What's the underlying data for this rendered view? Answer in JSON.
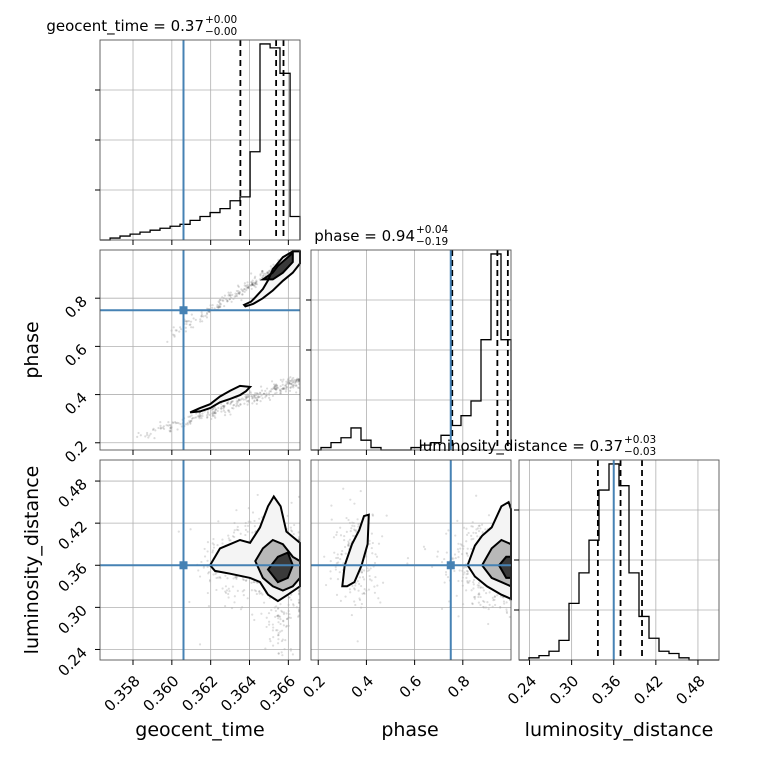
{
  "chart_data": {
    "type": "corner",
    "parameters": [
      "geocent_time",
      "phase",
      "luminosity_distance"
    ],
    "truths": {
      "geocent_time": 0.3606,
      "phase": 0.75,
      "luminosity_distance": 0.36
    },
    "colors": {
      "truth": "#4682b4",
      "hist": "#000000",
      "grid": "#b0b0b0"
    },
    "titles": [
      {
        "param": "geocent_time",
        "main": "geocent_time = 0.37",
        "sup": "+0.00",
        "sub": "−0.00"
      },
      {
        "param": "phase",
        "main": "phase = 0.94",
        "sup": "+0.04",
        "sub": "−0.19"
      },
      {
        "param": "luminosity_distance",
        "main": "luminosity_distance = 0.37",
        "sup": "+0.03",
        "sub": "−0.03"
      }
    ],
    "axes": {
      "geocent_time": {
        "range": [
          0.3563,
          0.3666
        ],
        "ticks": [
          0.358,
          0.36,
          0.362,
          0.364,
          0.366
        ],
        "tick_labels": [
          "0.358",
          "0.360",
          "0.362",
          "0.364",
          "0.366"
        ]
      },
      "phase": {
        "range": [
          0.17,
          1.0
        ],
        "ticks": [
          0.2,
          0.4,
          0.6,
          0.8
        ],
        "tick_labels": [
          "0.2",
          "0.4",
          "0.6",
          "0.8"
        ]
      },
      "luminosity_distance": {
        "range": [
          0.225,
          0.51
        ],
        "ticks": [
          0.24,
          0.3,
          0.36,
          0.42,
          0.48
        ],
        "tick_labels": [
          "0.24",
          "0.30",
          "0.36",
          "0.42",
          "0.48"
        ]
      }
    },
    "histograms": {
      "geocent_time": {
        "bin_edges": [
          0.3563,
          0.35682,
          0.35733,
          0.35785,
          0.35836,
          0.35888,
          0.35939,
          0.35991,
          0.36042,
          0.36094,
          0.36145,
          0.36197,
          0.36248,
          0.363,
          0.36351,
          0.36403,
          0.36454,
          0.36506,
          0.36557,
          0.36609,
          0.3666
        ],
        "counts": [
          0,
          1,
          2,
          3,
          4,
          5,
          6,
          7,
          8,
          10,
          12,
          14,
          16,
          20,
          22,
          45,
          100,
          98,
          85,
          12
        ],
        "quantiles": [
          0.36353,
          0.36537,
          0.36575
        ]
      },
      "phase": {
        "bin_edges": [
          0.17,
          0.2115,
          0.253,
          0.2945,
          0.336,
          0.3775,
          0.419,
          0.4605,
          0.502,
          0.5435,
          0.585,
          0.6265,
          0.668,
          0.7095,
          0.751,
          0.7925,
          0.834,
          0.8755,
          0.917,
          0.9585,
          1.0
        ],
        "counts": [
          0,
          1,
          3,
          5,
          9,
          4,
          1,
          0,
          0,
          0,
          1,
          2,
          3,
          6,
          10,
          14,
          20,
          45,
          80,
          45
        ],
        "quantiles": [
          0.7562,
          0.9434,
          0.9869
        ]
      },
      "luminosity_distance": {
        "bin_edges": [
          0.225,
          0.23925,
          0.2535,
          0.26775,
          0.282,
          0.29625,
          0.3105,
          0.32475,
          0.339,
          0.35325,
          0.3675,
          0.38175,
          0.396,
          0.41025,
          0.4245,
          0.43875,
          0.453,
          0.46725,
          0.4815,
          0.49575,
          0.51
        ],
        "counts": [
          0,
          1,
          2,
          4,
          9,
          26,
          40,
          55,
          78,
          90,
          80,
          40,
          20,
          10,
          4,
          3,
          1,
          0,
          0,
          0
        ],
        "quantiles": [
          0.3374,
          0.3697,
          0.4003
        ]
      }
    },
    "contours_2d": {
      "phase_vs_geocent_time": [
        {
          "level": "outer",
          "points": [
            [
              0.36372,
              0.772
            ],
            [
              0.36408,
              0.786
            ],
            [
              0.36433,
              0.806
            ],
            [
              0.36469,
              0.838
            ],
            [
              0.36495,
              0.874
            ],
            [
              0.3652,
              0.92
            ],
            [
              0.36572,
              0.97
            ],
            [
              0.36623,
              0.994
            ],
            [
              0.3666,
              0.994
            ],
            [
              0.3666,
              0.944
            ],
            [
              0.36623,
              0.906
            ],
            [
              0.36572,
              0.872
            ],
            [
              0.3652,
              0.832
            ],
            [
              0.36469,
              0.8
            ],
            [
              0.36418,
              0.776
            ],
            [
              0.36379,
              0.766
            ]
          ]
        },
        {
          "level": "inner",
          "points": [
            [
              0.36469,
              0.878
            ],
            [
              0.3652,
              0.906
            ],
            [
              0.36546,
              0.934
            ],
            [
              0.36597,
              0.97
            ],
            [
              0.36623,
              0.988
            ],
            [
              0.36623,
              0.95
            ],
            [
              0.36572,
              0.906
            ],
            [
              0.3652,
              0.878
            ]
          ]
        },
        {
          "level": "outer",
          "points": [
            [
              0.36094,
              0.326
            ],
            [
              0.36145,
              0.344
            ],
            [
              0.36197,
              0.36
            ],
            [
              0.36248,
              0.392
            ],
            [
              0.363,
              0.416
            ],
            [
              0.36351,
              0.436
            ],
            [
              0.36403,
              0.432
            ],
            [
              0.36382,
              0.414
            ],
            [
              0.36351,
              0.398
            ],
            [
              0.363,
              0.382
            ],
            [
              0.36248,
              0.368
            ],
            [
              0.36197,
              0.344
            ],
            [
              0.36145,
              0.33
            ]
          ]
        }
      ],
      "luminosity_distance_vs_geocent_time": [
        {
          "level": "outer",
          "points": [
            [
              0.36197,
              0.36
            ],
            [
              0.36248,
              0.384
            ],
            [
              0.363,
              0.39
            ],
            [
              0.36351,
              0.396
            ],
            [
              0.36403,
              0.392
            ],
            [
              0.36454,
              0.414
            ],
            [
              0.36495,
              0.444
            ],
            [
              0.36525,
              0.458
            ],
            [
              0.3656,
              0.444
            ],
            [
              0.3659,
              0.408
            ],
            [
              0.3666,
              0.392
            ],
            [
              0.3666,
              0.33
            ],
            [
              0.36597,
              0.318
            ],
            [
              0.36546,
              0.309
            ],
            [
              0.36495,
              0.318
            ],
            [
              0.36454,
              0.336
            ],
            [
              0.36403,
              0.342
            ],
            [
              0.363,
              0.348
            ],
            [
              0.36222,
              0.352
            ]
          ]
        },
        {
          "level": "mid",
          "points": [
            [
              0.3643,
              0.366
            ],
            [
              0.36469,
              0.384
            ],
            [
              0.3652,
              0.396
            ],
            [
              0.36572,
              0.39
            ],
            [
              0.36623,
              0.372
            ],
            [
              0.3666,
              0.366
            ],
            [
              0.3666,
              0.342
            ],
            [
              0.36623,
              0.33
            ],
            [
              0.36572,
              0.324
            ],
            [
              0.3652,
              0.33
            ],
            [
              0.36469,
              0.342
            ]
          ]
        },
        {
          "level": "inner",
          "points": [
            [
              0.36495,
              0.354
            ],
            [
              0.36546,
              0.372
            ],
            [
              0.36597,
              0.378
            ],
            [
              0.36623,
              0.36
            ],
            [
              0.36597,
              0.342
            ],
            [
              0.36546,
              0.336
            ]
          ]
        }
      ],
      "luminosity_distance_vs_phase": [
        {
          "level": "outer",
          "points": [
            [
              0.3,
              0.33
            ],
            [
              0.31,
              0.36
            ],
            [
              0.34,
              0.39
            ],
            [
              0.37,
              0.41
            ],
            [
              0.39,
              0.43
            ],
            [
              0.41,
              0.432
            ],
            [
              0.405,
              0.39
            ],
            [
              0.38,
              0.36
            ],
            [
              0.35,
              0.336
            ],
            [
              0.32,
              0.33
            ]
          ]
        },
        {
          "level": "outer",
          "points": [
            [
              0.82,
              0.36
            ],
            [
              0.85,
              0.388
            ],
            [
              0.88,
              0.402
            ],
            [
              0.92,
              0.414
            ],
            [
              0.96,
              0.444
            ],
            [
              0.99,
              0.45
            ],
            [
              1.0,
              0.44
            ],
            [
              1.0,
              0.312
            ],
            [
              0.96,
              0.318
            ],
            [
              0.9,
              0.33
            ],
            [
              0.85,
              0.344
            ]
          ]
        },
        {
          "level": "mid",
          "points": [
            [
              0.88,
              0.36
            ],
            [
              0.92,
              0.384
            ],
            [
              0.96,
              0.396
            ],
            [
              1.0,
              0.39
            ],
            [
              1.0,
              0.33
            ],
            [
              0.96,
              0.336
            ],
            [
              0.92,
              0.342
            ]
          ]
        },
        {
          "level": "inner",
          "points": [
            [
              0.95,
              0.36
            ],
            [
              0.98,
              0.372
            ],
            [
              1.0,
              0.372
            ],
            [
              1.0,
              0.342
            ],
            [
              0.98,
              0.342
            ]
          ]
        }
      ]
    },
    "grid": true
  }
}
